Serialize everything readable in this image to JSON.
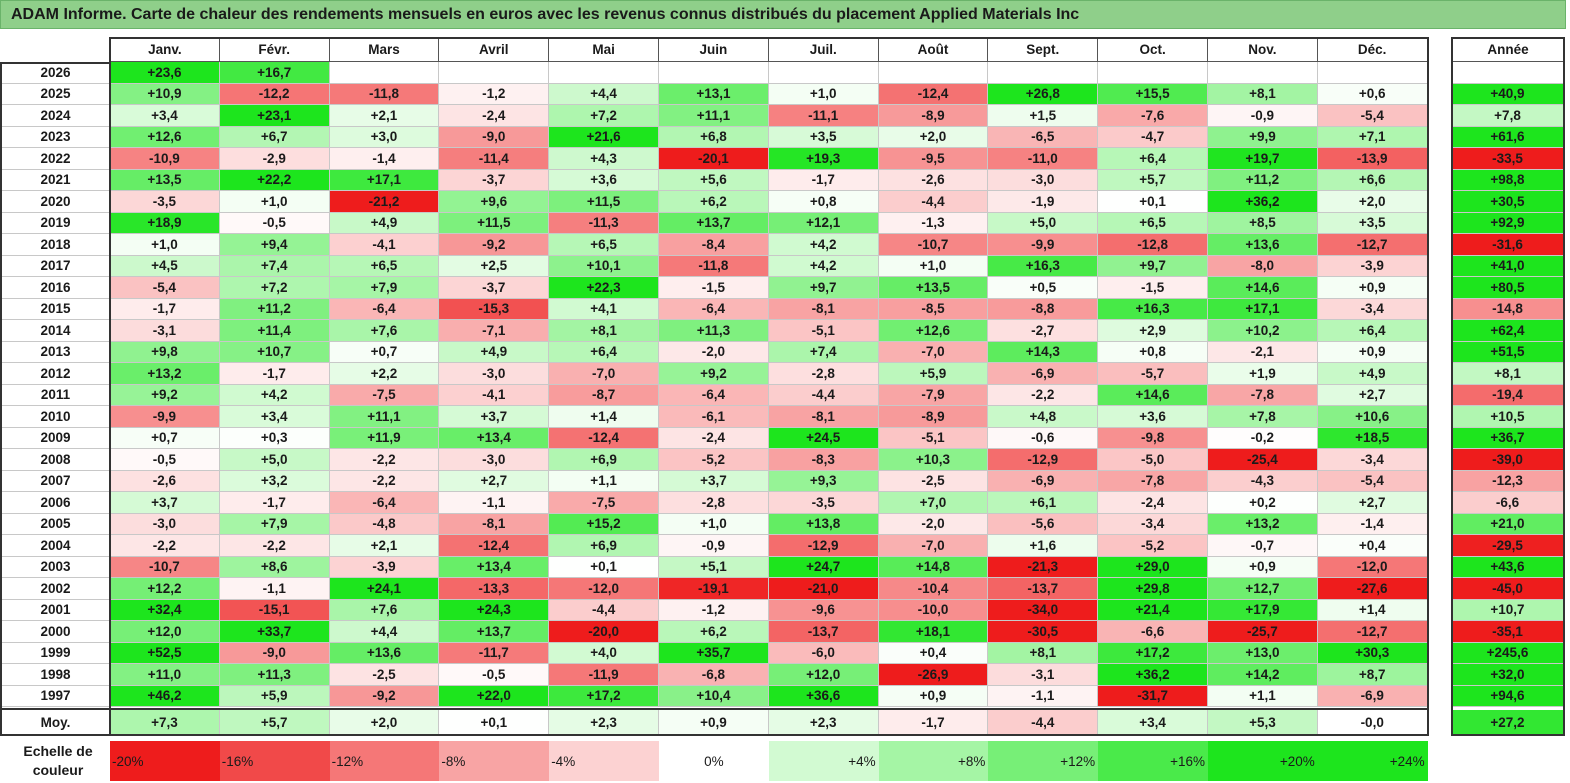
{
  "title": "ADAM Informe. Carte de chaleur des rendements mensuels en euros avec les revenus connus distribués du placement Applied Materials Inc",
  "chart_data": {
    "type": "heatmap",
    "title": "ADAM Informe. Carte de chaleur des rendements mensuels en euros avec les revenus connus distribués du placement Applied Materials Inc",
    "months": [
      "Janv.",
      "Févr.",
      "Mars",
      "Avril",
      "Mai",
      "Juin",
      "Juil.",
      "Août",
      "Sept.",
      "Oct.",
      "Nov.",
      "Déc."
    ],
    "year_header": "Année",
    "rows": [
      {
        "year": "2026",
        "months": [
          "+23,6",
          "+16,7",
          "",
          "",
          "",
          "",
          "",
          "",
          "",
          "",
          "",
          ""
        ],
        "annual": ""
      },
      {
        "year": "2025",
        "months": [
          "+10,9",
          "-12,2",
          "-11,8",
          "-1,2",
          "+4,4",
          "+13,1",
          "+1,0",
          "-12,4",
          "+26,8",
          "+15,5",
          "+8,1",
          "+0,6"
        ],
        "annual": "+40,9"
      },
      {
        "year": "2024",
        "months": [
          "+3,4",
          "+23,1",
          "+2,1",
          "-2,4",
          "+7,2",
          "+11,1",
          "-11,1",
          "-8,9",
          "+1,5",
          "-7,6",
          "-0,9",
          "-5,4"
        ],
        "annual": "+7,8"
      },
      {
        "year": "2023",
        "months": [
          "+12,6",
          "+6,7",
          "+3,0",
          "-9,0",
          "+21,6",
          "+6,8",
          "+3,5",
          "+2,0",
          "-6,5",
          "-4,7",
          "+9,9",
          "+7,1"
        ],
        "annual": "+61,6"
      },
      {
        "year": "2022",
        "months": [
          "-10,9",
          "-2,9",
          "-1,4",
          "-11,4",
          "+4,3",
          "-20,1",
          "+19,3",
          "-9,5",
          "-11,0",
          "+6,4",
          "+19,7",
          "-13,9"
        ],
        "annual": "-33,5"
      },
      {
        "year": "2021",
        "months": [
          "+13,5",
          "+22,2",
          "+17,1",
          "-3,7",
          "+3,6",
          "+5,6",
          "-1,7",
          "-2,6",
          "-3,0",
          "+5,7",
          "+11,2",
          "+6,6"
        ],
        "annual": "+98,8"
      },
      {
        "year": "2020",
        "months": [
          "-3,5",
          "+1,0",
          "-21,2",
          "+9,6",
          "+11,5",
          "+6,2",
          "+0,8",
          "-4,4",
          "-1,9",
          "+0,1",
          "+36,2",
          "+2,0"
        ],
        "annual": "+30,5"
      },
      {
        "year": "2019",
        "months": [
          "+18,9",
          "-0,5",
          "+4,9",
          "+11,5",
          "-11,3",
          "+13,7",
          "+12,1",
          "-1,3",
          "+5,0",
          "+6,5",
          "+8,5",
          "+3,5"
        ],
        "annual": "+92,9"
      },
      {
        "year": "2018",
        "months": [
          "+1,0",
          "+9,4",
          "-4,1",
          "-9,2",
          "+6,5",
          "-8,4",
          "+4,2",
          "-10,7",
          "-9,9",
          "-12,8",
          "+13,6",
          "-12,7"
        ],
        "annual": "-31,6"
      },
      {
        "year": "2017",
        "months": [
          "+4,5",
          "+7,4",
          "+6,5",
          "+2,5",
          "+10,1",
          "-11,8",
          "+4,2",
          "+1,0",
          "+16,3",
          "+9,7",
          "-8,0",
          "-3,9"
        ],
        "annual": "+41,0"
      },
      {
        "year": "2016",
        "months": [
          "-5,4",
          "+7,2",
          "+7,9",
          "-3,7",
          "+22,3",
          "-1,5",
          "+9,7",
          "+13,5",
          "+0,5",
          "-1,5",
          "+14,6",
          "+0,9"
        ],
        "annual": "+80,5"
      },
      {
        "year": "2015",
        "months": [
          "-1,7",
          "+11,2",
          "-6,4",
          "-15,3",
          "+4,1",
          "-6,4",
          "-8,1",
          "-8,5",
          "-8,8",
          "+16,3",
          "+17,1",
          "-3,4"
        ],
        "annual": "-14,8"
      },
      {
        "year": "2014",
        "months": [
          "-3,1",
          "+11,4",
          "+7,6",
          "-7,1",
          "+8,1",
          "+11,3",
          "-5,1",
          "+12,6",
          "-2,7",
          "+2,9",
          "+10,2",
          "+6,4"
        ],
        "annual": "+62,4"
      },
      {
        "year": "2013",
        "months": [
          "+9,8",
          "+10,7",
          "+0,7",
          "+4,9",
          "+6,4",
          "-2,0",
          "+7,4",
          "-7,0",
          "+14,3",
          "+0,8",
          "-2,1",
          "+0,9"
        ],
        "annual": "+51,5"
      },
      {
        "year": "2012",
        "months": [
          "+13,2",
          "-1,7",
          "+2,2",
          "-3,0",
          "-7,0",
          "+9,2",
          "-2,8",
          "+5,9",
          "-6,9",
          "-5,7",
          "+1,9",
          "+4,9"
        ],
        "annual": "+8,1"
      },
      {
        "year": "2011",
        "months": [
          "+9,2",
          "+4,2",
          "-7,5",
          "-4,1",
          "-8,7",
          "-6,4",
          "-4,4",
          "-7,9",
          "-2,2",
          "+14,6",
          "-7,8",
          "+2,7"
        ],
        "annual": "-19,4"
      },
      {
        "year": "2010",
        "months": [
          "-9,9",
          "+3,4",
          "+11,1",
          "+3,7",
          "+1,4",
          "-6,1",
          "-8,1",
          "-8,9",
          "+4,8",
          "+3,6",
          "+7,8",
          "+10,6"
        ],
        "annual": "+10,5"
      },
      {
        "year": "2009",
        "months": [
          "+0,7",
          "+0,3",
          "+11,9",
          "+13,4",
          "-12,4",
          "-2,4",
          "+24,5",
          "-5,1",
          "-0,6",
          "-9,8",
          "-0,2",
          "+18,5"
        ],
        "annual": "+36,7"
      },
      {
        "year": "2008",
        "months": [
          "-0,5",
          "+5,0",
          "-2,2",
          "-3,0",
          "+6,9",
          "-5,2",
          "-8,3",
          "+10,3",
          "-12,9",
          "-5,0",
          "-25,4",
          "-3,4"
        ],
        "annual": "-39,0"
      },
      {
        "year": "2007",
        "months": [
          "-2,6",
          "+3,2",
          "-2,2",
          "+2,7",
          "+1,1",
          "+3,7",
          "+9,3",
          "-2,5",
          "-6,9",
          "-7,8",
          "-4,3",
          "-5,4"
        ],
        "annual": "-12,3"
      },
      {
        "year": "2006",
        "months": [
          "+3,7",
          "-1,7",
          "-6,4",
          "-1,1",
          "-7,5",
          "-2,8",
          "-3,5",
          "+7,0",
          "+6,1",
          "-2,4",
          "+0,2",
          "+2,7"
        ],
        "annual": "-6,6"
      },
      {
        "year": "2005",
        "months": [
          "-3,0",
          "+7,9",
          "-4,8",
          "-8,1",
          "+15,2",
          "+1,0",
          "+13,8",
          "-2,0",
          "-5,6",
          "-3,4",
          "+13,2",
          "-1,4"
        ],
        "annual": "+21,0"
      },
      {
        "year": "2004",
        "months": [
          "-2,2",
          "-2,2",
          "+2,1",
          "-12,4",
          "+6,9",
          "-0,9",
          "-12,9",
          "-7,0",
          "+1,6",
          "-5,2",
          "-0,7",
          "+0,4"
        ],
        "annual": "-29,5"
      },
      {
        "year": "2003",
        "months": [
          "-10,7",
          "+8,6",
          "-3,9",
          "+13,4",
          "+0,1",
          "+5,1",
          "+24,7",
          "+14,8",
          "-21,3",
          "+29,0",
          "+0,9",
          "-12,0"
        ],
        "annual": "+43,6"
      },
      {
        "year": "2002",
        "months": [
          "+12,2",
          "-1,1",
          "+24,1",
          "-13,3",
          "-12,0",
          "-19,1",
          "-21,0",
          "-10,4",
          "-13,7",
          "+29,8",
          "+12,7",
          "-27,6"
        ],
        "annual": "-45,0"
      },
      {
        "year": "2001",
        "months": [
          "+32,4",
          "-15,1",
          "+7,6",
          "+24,3",
          "-4,4",
          "-1,2",
          "-9,6",
          "-10,0",
          "-34,0",
          "+21,4",
          "+17,9",
          "+1,4"
        ],
        "annual": "+10,7"
      },
      {
        "year": "2000",
        "months": [
          "+12,0",
          "+33,7",
          "+4,4",
          "+13,7",
          "-20,0",
          "+6,2",
          "-13,7",
          "+18,1",
          "-30,5",
          "-6,6",
          "-25,7",
          "-12,7"
        ],
        "annual": "-35,1"
      },
      {
        "year": "1999",
        "months": [
          "+52,5",
          "-9,0",
          "+13,6",
          "-11,7",
          "+4,0",
          "+35,7",
          "-6,0",
          "+0,4",
          "+8,1",
          "+17,2",
          "+13,0",
          "+30,3"
        ],
        "annual": "+245,6"
      },
      {
        "year": "1998",
        "months": [
          "+11,0",
          "+11,3",
          "-2,5",
          "-0,5",
          "-11,9",
          "-6,8",
          "+12,0",
          "-26,9",
          "-3,1",
          "+36,2",
          "+14,2",
          "+8,7"
        ],
        "annual": "+32,0"
      },
      {
        "year": "1997",
        "months": [
          "+46,2",
          "+5,9",
          "-9,2",
          "+22,0",
          "+17,2",
          "+10,4",
          "+36,6",
          "+0,9",
          "-1,1",
          "-31,7",
          "+1,1",
          "-6,9"
        ],
        "annual": "+94,6"
      }
    ],
    "average": {
      "label": "Moy.",
      "months": [
        "+7,3",
        "+5,7",
        "+2,0",
        "+0,1",
        "+2,3",
        "+0,9",
        "+2,3",
        "-1,7",
        "-4,4",
        "+3,4",
        "+5,3",
        "-0,0"
      ],
      "annual": "+27,2"
    },
    "color_scale": {
      "label_line1": "Echelle de",
      "label_line2": "couleur",
      "stops": [
        "-20%",
        "-16%",
        "-12%",
        "-8%",
        "-4%",
        "0%",
        "+4%",
        "+8%",
        "+12%",
        "+16%",
        "+20%",
        "+24%"
      ],
      "neg_color": "#ee1c1c",
      "zero_color": "#ffffff",
      "pos_color": "#1de51d"
    }
  }
}
